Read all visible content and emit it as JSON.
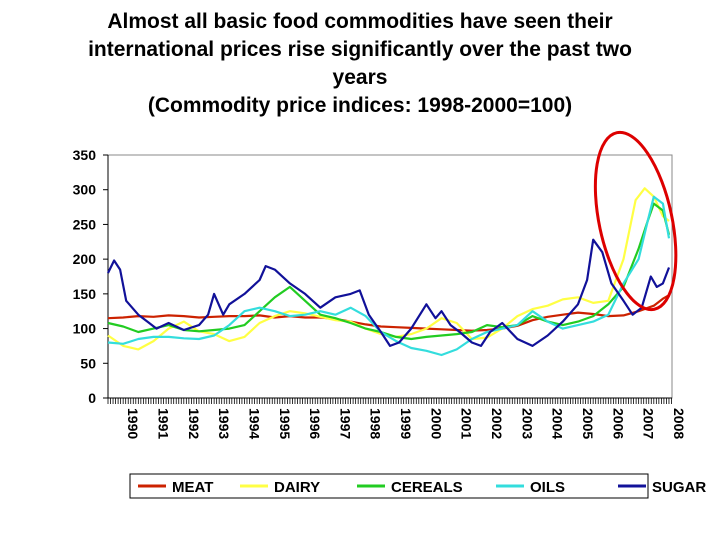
{
  "title_lines": [
    "Almost all basic food commodities have seen their",
    "international prices rise significantly over the past two",
    "years",
    "(Commodity price indices: 1998-2000=100)"
  ],
  "chart_data": {
    "type": "line",
    "ylim": [
      0,
      350
    ],
    "yticks": [
      0,
      50,
      100,
      150,
      200,
      250,
      300,
      350
    ],
    "xlim": [
      1990,
      2008.6
    ],
    "years": [
      "1990",
      "1991",
      "1992",
      "1993",
      "1994",
      "1995",
      "1996",
      "1997",
      "1998",
      "1999",
      "2000",
      "2001",
      "2002",
      "2003",
      "2004",
      "2005",
      "2006",
      "2007",
      "2008"
    ],
    "legend_position": "bottom",
    "series": [
      {
        "name": "MEAT",
        "color": "#cc2200",
        "points": [
          [
            1990,
            115
          ],
          [
            1990.5,
            116
          ],
          [
            1991,
            118
          ],
          [
            1991.5,
            117
          ],
          [
            1992,
            119
          ],
          [
            1992.5,
            118
          ],
          [
            1993,
            116
          ],
          [
            1993.5,
            117
          ],
          [
            1994,
            118
          ],
          [
            1994.5,
            118
          ],
          [
            1995,
            119
          ],
          [
            1995.5,
            116
          ],
          [
            1996,
            118
          ],
          [
            1996.5,
            116
          ],
          [
            1997,
            116
          ],
          [
            1997.5,
            114
          ],
          [
            1998,
            110
          ],
          [
            1998.5,
            106
          ],
          [
            1999,
            103
          ],
          [
            1999.5,
            102
          ],
          [
            2000,
            101
          ],
          [
            2000.5,
            100
          ],
          [
            2001,
            99
          ],
          [
            2001.5,
            98
          ],
          [
            2002,
            97
          ],
          [
            2002.5,
            98
          ],
          [
            2003,
            100
          ],
          [
            2003.5,
            104
          ],
          [
            2004,
            112
          ],
          [
            2004.5,
            117
          ],
          [
            2005,
            120
          ],
          [
            2005.5,
            123
          ],
          [
            2006,
            121
          ],
          [
            2006.5,
            118
          ],
          [
            2007,
            119
          ],
          [
            2007.5,
            125
          ],
          [
            2008,
            133
          ],
          [
            2008.3,
            143
          ],
          [
            2008.5,
            148
          ]
        ]
      },
      {
        "name": "DAIRY",
        "color": "#ffff44",
        "points": [
          [
            1990,
            90
          ],
          [
            1990.5,
            75
          ],
          [
            1991,
            70
          ],
          [
            1991.5,
            82
          ],
          [
            1992,
            100
          ],
          [
            1992.5,
            110
          ],
          [
            1993,
            96
          ],
          [
            1993.5,
            92
          ],
          [
            1994,
            82
          ],
          [
            1994.5,
            88
          ],
          [
            1995,
            108
          ],
          [
            1995.5,
            118
          ],
          [
            1996,
            125
          ],
          [
            1996.5,
            122
          ],
          [
            1997,
            117
          ],
          [
            1997.5,
            112
          ],
          [
            1998,
            110
          ],
          [
            1998.5,
            100
          ],
          [
            1999,
            92
          ],
          [
            1999.5,
            88
          ],
          [
            2000,
            92
          ],
          [
            2000.5,
            100
          ],
          [
            2001,
            115
          ],
          [
            2001.5,
            108
          ],
          [
            2002,
            85
          ],
          [
            2002.5,
            87
          ],
          [
            2003,
            100
          ],
          [
            2003.5,
            118
          ],
          [
            2004,
            128
          ],
          [
            2004.5,
            133
          ],
          [
            2005,
            142
          ],
          [
            2005.5,
            145
          ],
          [
            2006,
            137
          ],
          [
            2006.5,
            140
          ],
          [
            2007,
            200
          ],
          [
            2007.4,
            285
          ],
          [
            2007.7,
            302
          ],
          [
            2008,
            290
          ],
          [
            2008.3,
            262
          ],
          [
            2008.5,
            255
          ]
        ]
      },
      {
        "name": "CEREALS",
        "color": "#22cc22",
        "points": [
          [
            1990,
            108
          ],
          [
            1990.5,
            103
          ],
          [
            1991,
            95
          ],
          [
            1991.5,
            100
          ],
          [
            1992,
            105
          ],
          [
            1992.5,
            98
          ],
          [
            1993,
            96
          ],
          [
            1993.5,
            98
          ],
          [
            1994,
            100
          ],
          [
            1994.5,
            105
          ],
          [
            1995,
            125
          ],
          [
            1995.5,
            145
          ],
          [
            1996,
            160
          ],
          [
            1996.5,
            140
          ],
          [
            1997,
            120
          ],
          [
            1997.5,
            115
          ],
          [
            1998,
            108
          ],
          [
            1998.5,
            100
          ],
          [
            1999,
            95
          ],
          [
            1999.5,
            88
          ],
          [
            2000,
            85
          ],
          [
            2000.5,
            88
          ],
          [
            2001,
            90
          ],
          [
            2001.5,
            92
          ],
          [
            2002,
            95
          ],
          [
            2002.5,
            105
          ],
          [
            2003,
            102
          ],
          [
            2003.5,
            105
          ],
          [
            2004,
            118
          ],
          [
            2004.5,
            110
          ],
          [
            2005,
            105
          ],
          [
            2005.5,
            110
          ],
          [
            2006,
            118
          ],
          [
            2006.5,
            135
          ],
          [
            2007,
            160
          ],
          [
            2007.5,
            215
          ],
          [
            2007.8,
            255
          ],
          [
            2008,
            280
          ],
          [
            2008.3,
            270
          ],
          [
            2008.5,
            235
          ]
        ]
      },
      {
        "name": "OILS",
        "color": "#33dddd",
        "points": [
          [
            1990,
            80
          ],
          [
            1990.5,
            78
          ],
          [
            1991,
            85
          ],
          [
            1991.5,
            88
          ],
          [
            1992,
            88
          ],
          [
            1992.5,
            86
          ],
          [
            1993,
            85
          ],
          [
            1993.5,
            90
          ],
          [
            1994,
            105
          ],
          [
            1994.5,
            125
          ],
          [
            1995,
            130
          ],
          [
            1995.5,
            125
          ],
          [
            1996,
            118
          ],
          [
            1996.5,
            120
          ],
          [
            1997,
            125
          ],
          [
            1997.5,
            120
          ],
          [
            1998,
            130
          ],
          [
            1998.5,
            118
          ],
          [
            1999,
            95
          ],
          [
            1999.5,
            82
          ],
          [
            2000,
            72
          ],
          [
            2000.5,
            68
          ],
          [
            2001,
            62
          ],
          [
            2001.5,
            70
          ],
          [
            2002,
            85
          ],
          [
            2002.5,
            95
          ],
          [
            2003,
            100
          ],
          [
            2003.5,
            105
          ],
          [
            2004,
            125
          ],
          [
            2004.5,
            110
          ],
          [
            2005,
            100
          ],
          [
            2005.5,
            105
          ],
          [
            2006,
            110
          ],
          [
            2006.5,
            120
          ],
          [
            2007,
            165
          ],
          [
            2007.5,
            200
          ],
          [
            2007.8,
            255
          ],
          [
            2008,
            290
          ],
          [
            2008.3,
            280
          ],
          [
            2008.5,
            230
          ]
        ]
      },
      {
        "name": "SUGAR",
        "color": "#111199",
        "points": [
          [
            1990,
            180
          ],
          [
            1990.2,
            198
          ],
          [
            1990.4,
            185
          ],
          [
            1990.6,
            140
          ],
          [
            1991,
            120
          ],
          [
            1991.3,
            110
          ],
          [
            1991.6,
            100
          ],
          [
            1992,
            108
          ],
          [
            1992.5,
            98
          ],
          [
            1993,
            105
          ],
          [
            1993.3,
            120
          ],
          [
            1993.5,
            150
          ],
          [
            1993.8,
            120
          ],
          [
            1994,
            135
          ],
          [
            1994.5,
            150
          ],
          [
            1995,
            170
          ],
          [
            1995.2,
            190
          ],
          [
            1995.5,
            185
          ],
          [
            1996,
            165
          ],
          [
            1996.5,
            150
          ],
          [
            1997,
            130
          ],
          [
            1997.5,
            145
          ],
          [
            1998,
            150
          ],
          [
            1998.3,
            155
          ],
          [
            1998.6,
            120
          ],
          [
            1999,
            95
          ],
          [
            1999.3,
            75
          ],
          [
            1999.6,
            80
          ],
          [
            2000,
            100
          ],
          [
            2000.5,
            135
          ],
          [
            2000.8,
            115
          ],
          [
            2001,
            125
          ],
          [
            2001.3,
            105
          ],
          [
            2001.6,
            95
          ],
          [
            2002,
            80
          ],
          [
            2002.3,
            75
          ],
          [
            2002.6,
            95
          ],
          [
            2003,
            108
          ],
          [
            2003.5,
            85
          ],
          [
            2004,
            75
          ],
          [
            2004.5,
            90
          ],
          [
            2005,
            110
          ],
          [
            2005.5,
            135
          ],
          [
            2005.8,
            170
          ],
          [
            2006,
            228
          ],
          [
            2006.3,
            210
          ],
          [
            2006.6,
            165
          ],
          [
            2007,
            140
          ],
          [
            2007.3,
            120
          ],
          [
            2007.6,
            130
          ],
          [
            2007.9,
            175
          ],
          [
            2008.1,
            160
          ],
          [
            2008.3,
            165
          ],
          [
            2008.5,
            188
          ]
        ]
      }
    ],
    "annotation": {
      "shape": "ellipse",
      "color": "#dd0000",
      "center": [
        2007.4,
        255
      ],
      "radius_years": 1.2,
      "radius_value": 130
    }
  }
}
